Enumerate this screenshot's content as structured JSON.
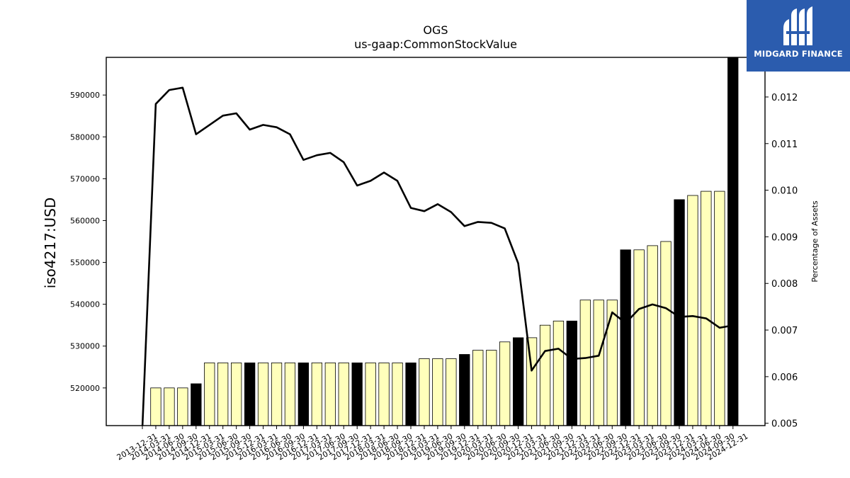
{
  "logo": {
    "text": "MIDGARD FINANCE",
    "color": "#2b5cae"
  },
  "chart_data": {
    "type": "bar",
    "title": "OGS",
    "subtitle": "us-gaap:CommonStockValue",
    "ylabel": "iso4217:USD",
    "y2label": "Percentage of Assets",
    "ylim": [
      511000,
      599000
    ],
    "y2lim": [
      0.00495,
      0.01285
    ],
    "yticks": [
      520000,
      530000,
      540000,
      550000,
      560000,
      570000,
      580000,
      590000
    ],
    "y2ticks": [
      "0.005",
      "0.006",
      "0.007",
      "0.008",
      "0.009",
      "0.010",
      "0.011",
      "0.012"
    ],
    "categories": [
      "2013-12-31",
      "2014-03-31",
      "2014-06-30",
      "2014-09-30",
      "2014-12-31",
      "2015-03-31",
      "2015-06-30",
      "2015-09-30",
      "2015-12-31",
      "2016-03-31",
      "2016-06-30",
      "2016-09-30",
      "2016-12-31",
      "2017-03-31",
      "2017-06-30",
      "2017-09-30",
      "2017-12-31",
      "2018-03-31",
      "2018-06-30",
      "2018-09-30",
      "2018-12-31",
      "2019-03-31",
      "2019-06-30",
      "2019-09-30",
      "2019-12-31",
      "2020-03-31",
      "2020-06-30",
      "2020-09-30",
      "2020-12-31",
      "2021-03-31",
      "2021-06-30",
      "2021-09-30",
      "2021-12-31",
      "2022-03-31",
      "2022-06-30",
      "2022-09-30",
      "2022-12-31",
      "2023-03-31",
      "2023-06-30",
      "2023-09-30",
      "2023-12-31",
      "2024-03-31",
      "2024-06-30",
      "2024-09-30",
      "2024-12-31"
    ],
    "series": [
      {
        "kind": "bar",
        "values": [
          null,
          520000,
          520000,
          520000,
          521000,
          526000,
          526000,
          526000,
          526000,
          526000,
          526000,
          526000,
          526000,
          526000,
          526000,
          526000,
          526000,
          526000,
          526000,
          526000,
          526000,
          527000,
          527000,
          527000,
          528000,
          529000,
          529000,
          531000,
          532000,
          532000,
          535000,
          536000,
          536000,
          541000,
          541000,
          541000,
          553000,
          553000,
          554000,
          555000,
          565000,
          566000,
          567000,
          567000,
          599000
        ],
        "highlight": [
          false,
          false,
          false,
          false,
          true,
          false,
          false,
          false,
          true,
          false,
          false,
          false,
          true,
          false,
          false,
          false,
          true,
          false,
          false,
          false,
          true,
          false,
          false,
          false,
          true,
          false,
          false,
          false,
          true,
          false,
          false,
          false,
          true,
          false,
          false,
          false,
          true,
          false,
          false,
          false,
          true,
          false,
          false,
          false,
          true
        ],
        "color": "#ffffbb",
        "highlight_color": "#000000"
      },
      {
        "kind": "line",
        "axis": "right",
        "values": [
          0.0049,
          0.01185,
          0.01215,
          0.0122,
          0.0112,
          0.0114,
          0.0116,
          0.01165,
          0.0113,
          0.0114,
          0.01135,
          0.0112,
          0.01065,
          0.01075,
          0.0108,
          0.0106,
          0.0101,
          0.0102,
          0.01038,
          0.0102,
          0.00962,
          0.00955,
          0.0097,
          0.00953,
          0.00923,
          0.00932,
          0.0093,
          0.00918,
          0.00843,
          0.00613,
          0.00655,
          0.0066,
          0.00638,
          0.0064,
          0.00645,
          0.00738,
          0.00715,
          0.00745,
          0.00755,
          0.00747,
          0.00728,
          0.0073,
          0.00725,
          0.00705,
          0.0071
        ],
        "color": "#000000"
      }
    ]
  }
}
